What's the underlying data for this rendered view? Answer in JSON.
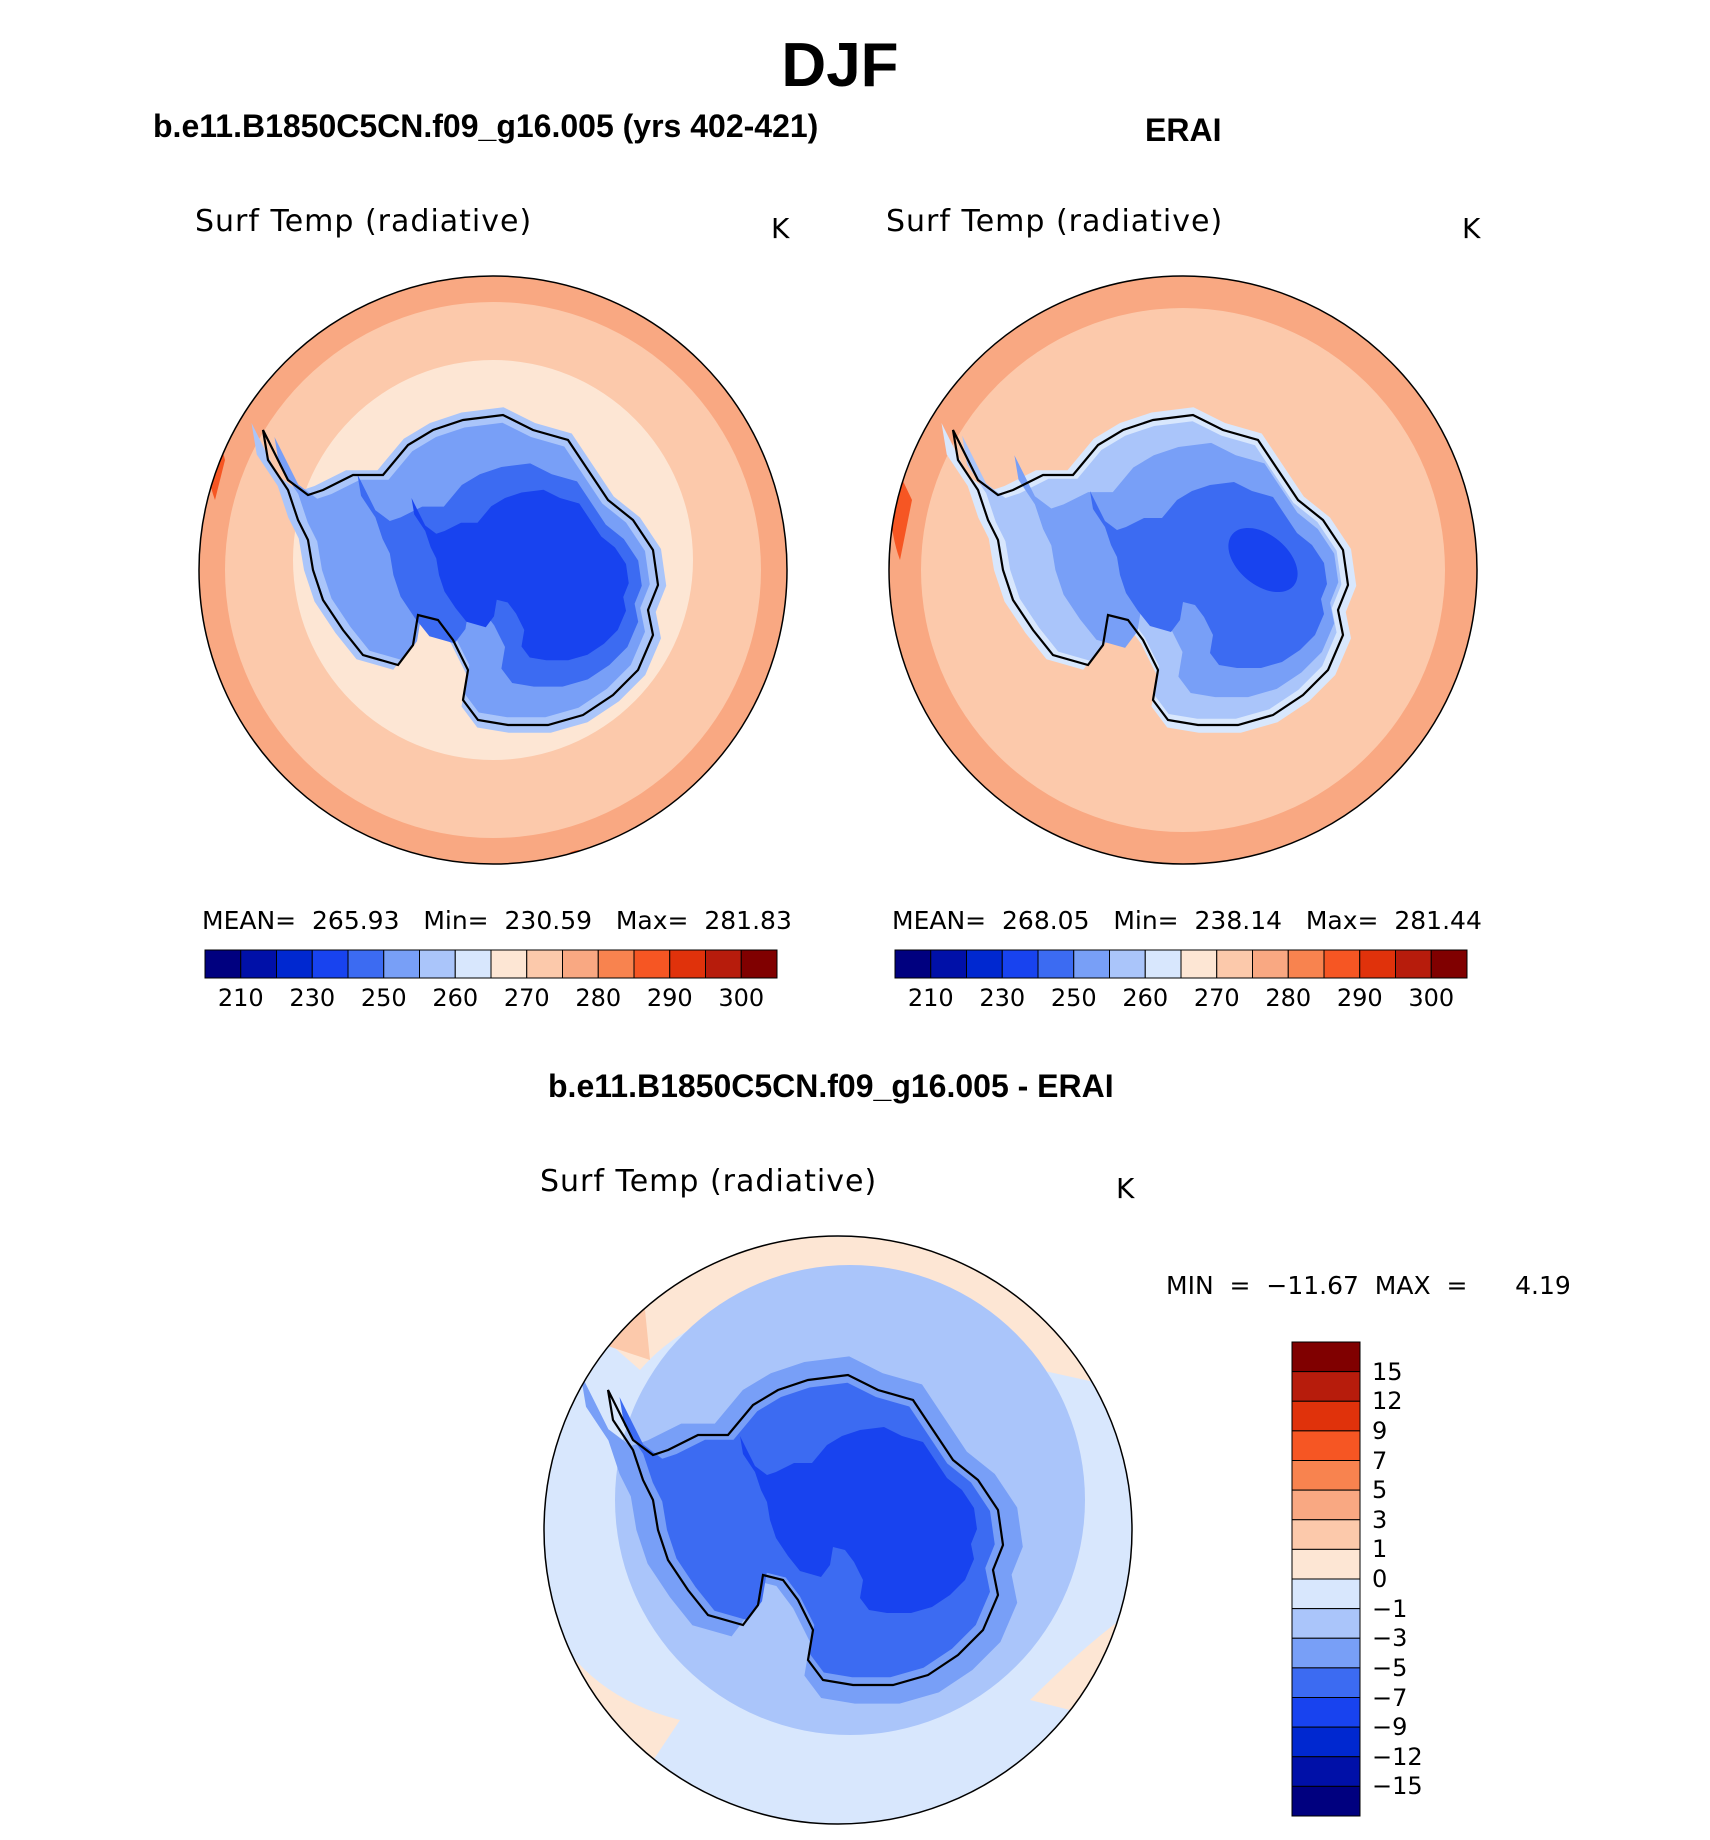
{
  "main_title": "DJF",
  "colors": {
    "abs_scale": [
      "#00007f",
      "#0010a8",
      "#0028d0",
      "#1843ef",
      "#3c6bf2",
      "#789ff7",
      "#aac5fa",
      "#d8e7fd",
      "#fde6d4",
      "#fcc9ab",
      "#f9a882",
      "#f8834f",
      "#f65623",
      "#e0320b",
      "#b71c0c",
      "#800000"
    ],
    "diff_scale": [
      "#00007f",
      "#0010a8",
      "#0028d0",
      "#1843ef",
      "#3c6bf2",
      "#789ff7",
      "#aac5fa",
      "#d8e7fd",
      "#fde6d4",
      "#fcc9ab",
      "#f9a882",
      "#f8834f",
      "#f65623",
      "#e0320b",
      "#b71c0c",
      "#800000"
    ]
  },
  "panels": {
    "model": {
      "title": "b.e11.B1850C5CN.f09_g16.005 (yrs 402-421)",
      "variable": "Surf Temp (radiative)",
      "units": "K",
      "stats": "MEAN=  265.93   Min=  230.59   Max=  281.83",
      "colorbar_ticks": [
        "210",
        "230",
        "250",
        "260",
        "270",
        "280",
        "290",
        "300"
      ]
    },
    "obs": {
      "title": "ERAI",
      "variable": "Surf Temp (radiative)",
      "units": "K",
      "stats": "MEAN=  268.05   Min=  238.14   Max=  281.44",
      "colorbar_ticks": [
        "210",
        "230",
        "250",
        "260",
        "270",
        "280",
        "290",
        "300"
      ]
    },
    "diff": {
      "title": "b.e11.B1850C5CN.f09_g16.005 - ERAI",
      "variable": "Surf Temp (radiative)",
      "units": "K",
      "stats": "MIN  =  −11.67  MAX  =      4.19",
      "colorbar_ticks": [
        "15",
        "12",
        "9",
        "7",
        "5",
        "3",
        "1",
        "0",
        "−1",
        "−3",
        "−5",
        "−7",
        "−9",
        "−12",
        "−15"
      ]
    }
  },
  "chart_data": [
    {
      "type": "heatmap",
      "title": "b.e11.B1850C5CN.f09_g16.005 (yrs 402-421)",
      "variable": "Surf Temp (radiative)",
      "units": "K",
      "projection": "south polar stereographic",
      "mean": 265.93,
      "min": 230.59,
      "max": 281.83,
      "contour_levels": [
        210,
        220,
        230,
        240,
        250,
        255,
        260,
        265,
        270,
        275,
        280,
        285,
        290,
        295,
        300
      ]
    },
    {
      "type": "heatmap",
      "title": "ERAI",
      "variable": "Surf Temp (radiative)",
      "units": "K",
      "projection": "south polar stereographic",
      "mean": 268.05,
      "min": 238.14,
      "max": 281.44,
      "contour_levels": [
        210,
        220,
        230,
        240,
        250,
        255,
        260,
        265,
        270,
        275,
        280,
        285,
        290,
        295,
        300
      ]
    },
    {
      "type": "heatmap",
      "title": "b.e11.B1850C5CN.f09_g16.005 - ERAI",
      "variable": "Surf Temp (radiative)",
      "units": "K",
      "projection": "south polar stereographic",
      "min": -11.67,
      "max": 4.19,
      "contour_levels": [
        -15,
        -12,
        -9,
        -7,
        -5,
        -3,
        -1,
        0,
        1,
        3,
        5,
        7,
        9,
        12,
        15
      ]
    }
  ]
}
